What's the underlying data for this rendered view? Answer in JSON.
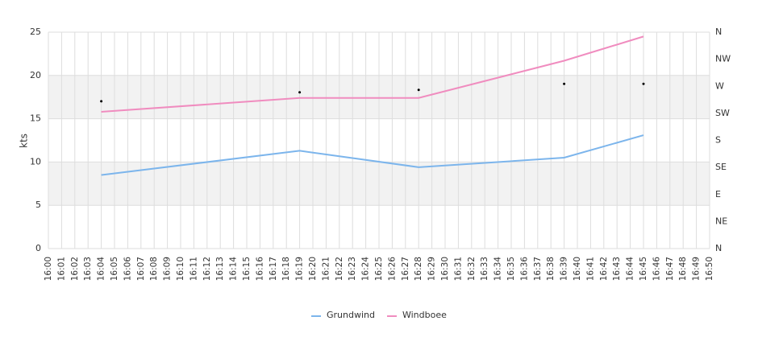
{
  "chart_data": {
    "type": "line",
    "y_label": "kts",
    "categories": [
      "16:00",
      "16:01",
      "16:02",
      "16:03",
      "16:04",
      "16:05",
      "16:06",
      "16:07",
      "16:08",
      "16:09",
      "16:10",
      "16:11",
      "16:12",
      "16:13",
      "16:14",
      "16:15",
      "16:16",
      "16:17",
      "16:18",
      "16:19",
      "16:20",
      "16:21",
      "16:22",
      "16:23",
      "16:24",
      "16:25",
      "16:26",
      "16:27",
      "16:28",
      "16:29",
      "16:30",
      "16:31",
      "16:32",
      "16:33",
      "16:34",
      "16:35",
      "16:36",
      "16:37",
      "16:38",
      "16:39",
      "16:40",
      "16:41",
      "16:42",
      "16:43",
      "16:44",
      "16:45",
      "16:46",
      "16:47",
      "16:48",
      "16:49",
      "16:50"
    ],
    "ylim": [
      0,
      25
    ],
    "yticks": [
      0,
      5,
      10,
      15,
      20,
      25
    ],
    "y2lim": [
      0,
      360
    ],
    "y2ticks": [
      {
        "value": 0,
        "label": "N"
      },
      {
        "value": 45,
        "label": "NE"
      },
      {
        "value": 90,
        "label": "E"
      },
      {
        "value": 135,
        "label": "SE"
      },
      {
        "value": 180,
        "label": "S"
      },
      {
        "value": 225,
        "label": "SW"
      },
      {
        "value": 270,
        "label": "W"
      },
      {
        "value": 315,
        "label": "NW"
      },
      {
        "value": 360,
        "label": "N"
      }
    ],
    "grid": true,
    "legend": "bottom",
    "series": [
      {
        "name": "Grundwind",
        "color": "#7cb5ec",
        "x": [
          "16:04",
          "16:19",
          "16:28",
          "16:39",
          "16:45"
        ],
        "values": [
          8.5,
          11.3,
          9.4,
          10.5,
          13.1
        ]
      },
      {
        "name": "Windboee",
        "color": "#f08cbf",
        "x": [
          "16:04",
          "16:19",
          "16:28",
          "16:39",
          "16:45"
        ],
        "values": [
          15.8,
          17.4,
          17.4,
          21.7,
          24.5
        ]
      }
    ],
    "direction": {
      "axis": "y2",
      "color": "#000000",
      "x": [
        "16:04",
        "16:19",
        "16:28",
        "16:39",
        "16:45"
      ],
      "values": [
        245,
        260,
        264,
        274,
        274
      ]
    }
  }
}
